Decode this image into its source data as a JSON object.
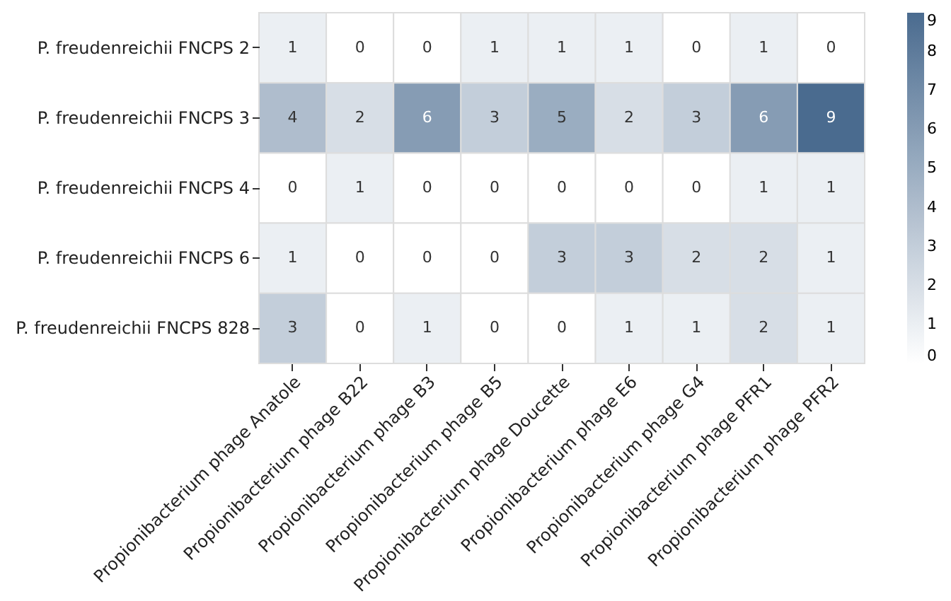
{
  "chart_data": {
    "type": "heatmap",
    "categories": [
      "Propionibacterium phage Anatole",
      "Propionibacterium phage B22",
      "Propionibacterium phage B3",
      "Propionibacterium phage B5",
      "Propionibacterium phage Doucette",
      "Propionibacterium phage E6",
      "Propionibacterium phage G4",
      "Propionibacterium phage PFR1",
      "Propionibacterium phage PFR2"
    ],
    "y_categories": [
      "P. freudenreichii FNCPS 2",
      "P. freudenreichii FNCPS 3",
      "P. freudenreichii FNCPS 4",
      "P. freudenreichii FNCPS 6",
      "P. freudenreichii FNCPS 828"
    ],
    "cells": [
      [
        1,
        0,
        0,
        1,
        1,
        1,
        0,
        1,
        0
      ],
      [
        4,
        2,
        6,
        3,
        5,
        2,
        3,
        6,
        9
      ],
      [
        0,
        1,
        0,
        0,
        0,
        0,
        0,
        1,
        1
      ],
      [
        1,
        0,
        0,
        0,
        3,
        3,
        2,
        2,
        1
      ],
      [
        3,
        0,
        1,
        0,
        0,
        1,
        1,
        2,
        1
      ]
    ],
    "clim": [
      0,
      9
    ],
    "cticks": [
      0,
      1,
      2,
      3,
      4,
      5,
      6,
      7,
      8,
      9
    ],
    "data_labels": true
  }
}
